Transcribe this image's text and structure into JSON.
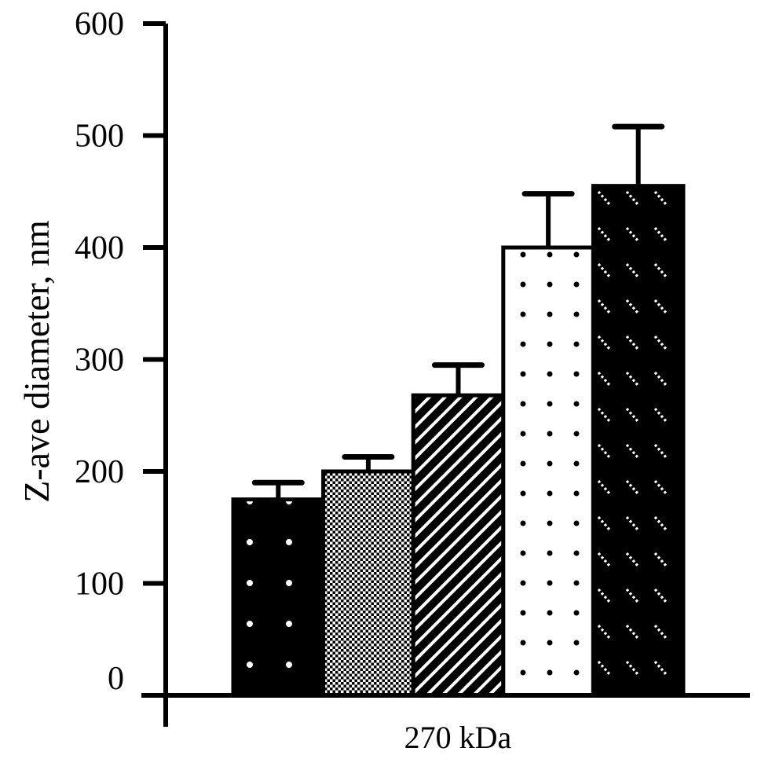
{
  "chart_data": {
    "type": "bar",
    "title": "",
    "xlabel": "270 kDa",
    "ylabel": "Z-ave diameter, nm",
    "ylim": [
      0,
      600
    ],
    "yticks": [
      "0",
      "100",
      "200",
      "300",
      "400",
      "500",
      "600"
    ],
    "grid": false,
    "legend": "none",
    "categories": [
      "270 kDa"
    ],
    "series": [
      {
        "values": [
          175
        ],
        "errors": [
          15
        ],
        "pattern": "black-white-dots"
      },
      {
        "values": [
          200
        ],
        "errors": [
          13
        ],
        "pattern": "checkered"
      },
      {
        "values": [
          268
        ],
        "errors": [
          27
        ],
        "pattern": "diagonal-stripes"
      },
      {
        "values": [
          400
        ],
        "errors": [
          48
        ],
        "pattern": "white-black-dots"
      },
      {
        "values": [
          455
        ],
        "errors": [
          53
        ],
        "pattern": "black-white-dashes"
      }
    ]
  }
}
